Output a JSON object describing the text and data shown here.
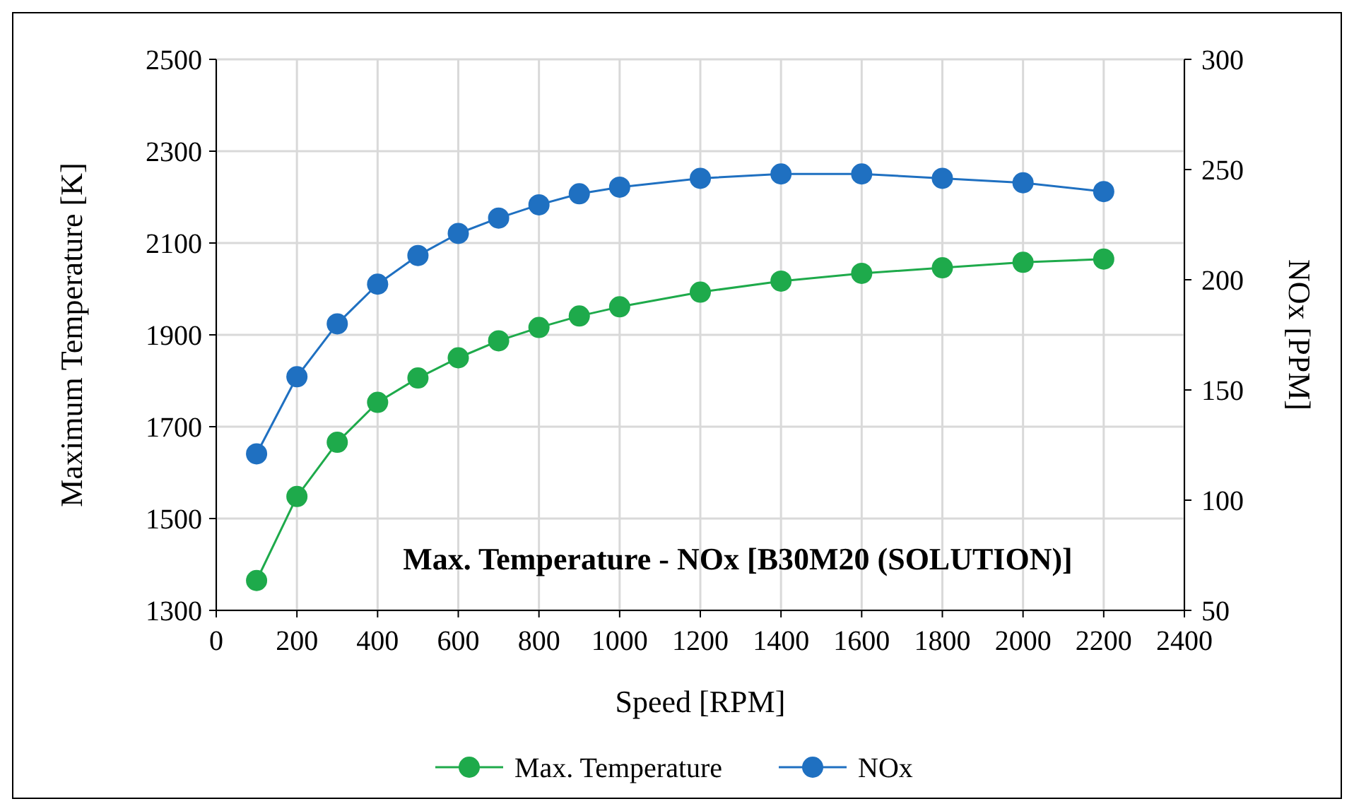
{
  "chart_data": {
    "type": "line",
    "annotations": [
      "Max. Temperature - NOx [B30M20 (SOLUTION)]"
    ],
    "xlabel": "Speed [RPM]",
    "ylabel": "Maximum  Temperature [K]",
    "y2label": "NOx [PPM]",
    "x": [
      100,
      200,
      300,
      400,
      500,
      600,
      700,
      800,
      900,
      1000,
      1200,
      1400,
      1600,
      1800,
      2000,
      2200
    ],
    "series": [
      {
        "name": "Max. Temperature",
        "color": "#1eaa4b",
        "values": [
          1365,
          1548,
          1666,
          1753,
          1806,
          1850,
          1887,
          1916,
          1941,
          1961,
          1993,
          2017,
          2034,
          2046,
          2058,
          2065
        ]
      },
      {
        "name": "NOx",
        "color": "#1f70c1",
        "axis": "y2",
        "values": [
          121,
          156,
          180,
          198,
          211,
          221,
          228,
          234,
          239,
          242,
          246,
          248,
          248,
          246,
          244,
          240
        ]
      }
    ],
    "xlim": [
      0,
      2400
    ],
    "xticks": [
      0,
      200,
      400,
      600,
      800,
      1000,
      1200,
      1400,
      1600,
      1800,
      2000,
      2200,
      2400
    ],
    "ylim": [
      1300,
      2500
    ],
    "yticks": [
      1300,
      1500,
      1700,
      1900,
      2100,
      2300,
      2500
    ],
    "y2lim": [
      50,
      300
    ],
    "y2ticks": [
      50,
      100,
      150,
      200,
      250,
      300
    ],
    "marker": "circle",
    "legend": "bottom",
    "grid": true
  }
}
